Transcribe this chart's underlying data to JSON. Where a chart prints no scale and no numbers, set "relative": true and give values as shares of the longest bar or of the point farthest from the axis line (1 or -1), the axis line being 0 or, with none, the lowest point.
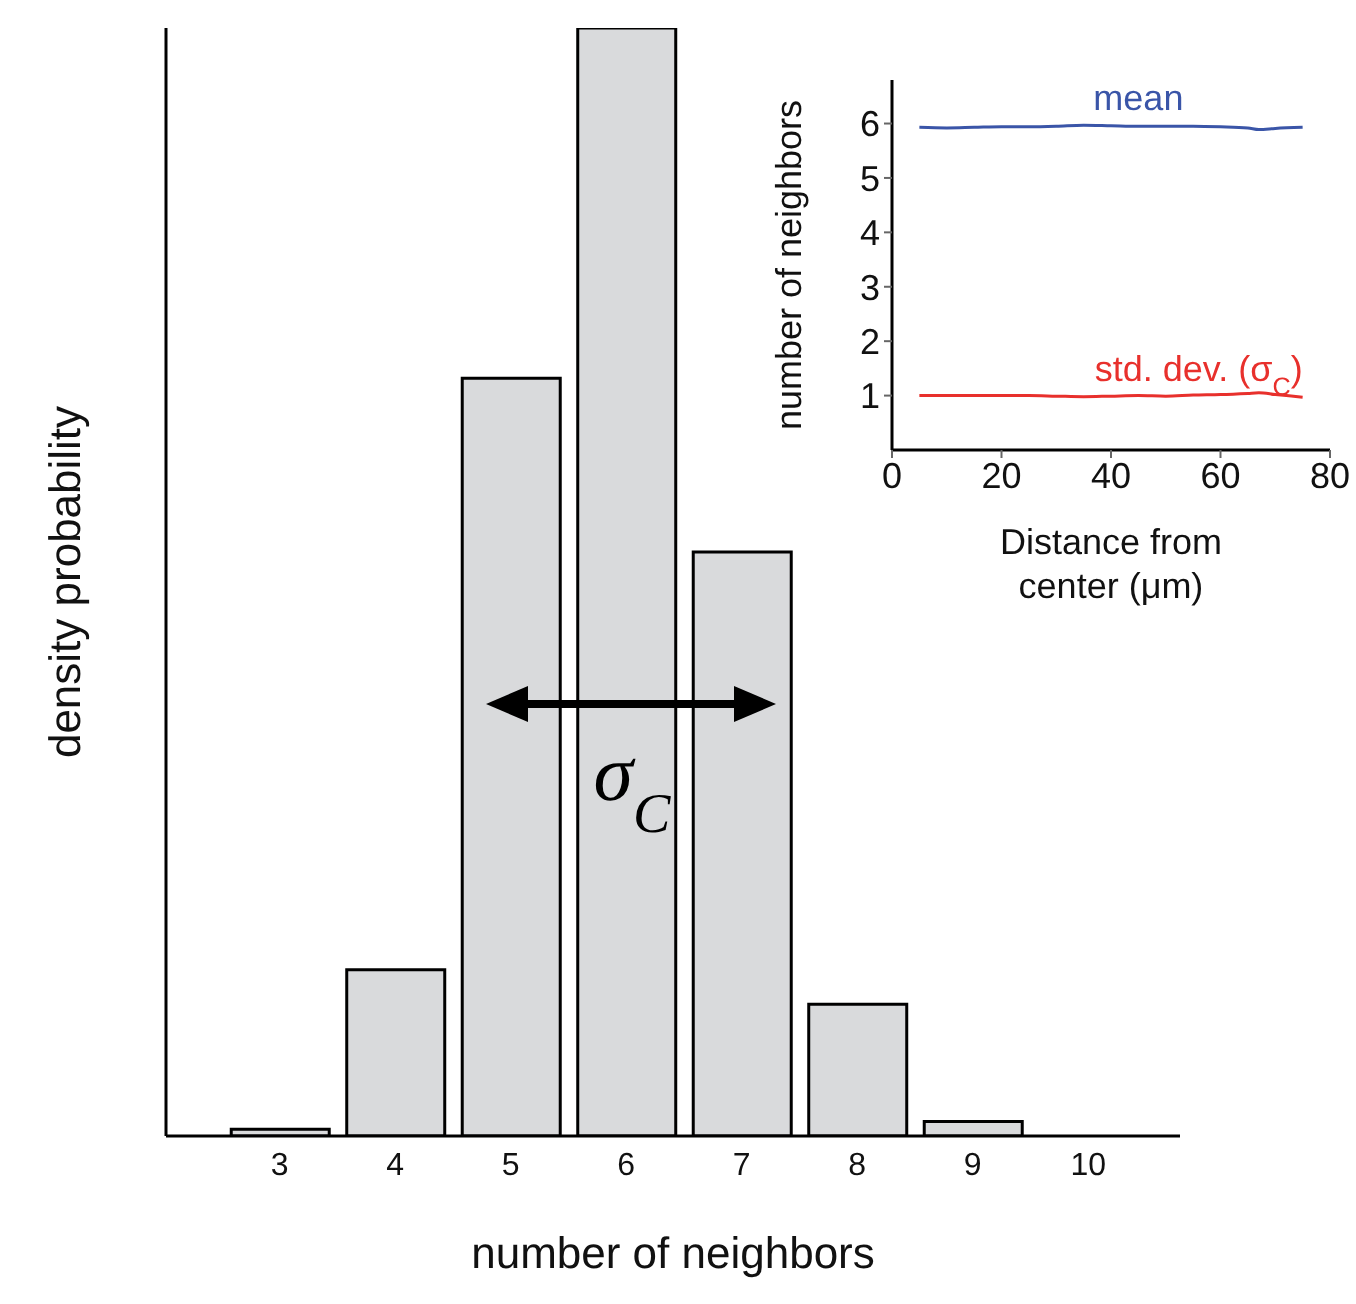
{
  "chart_data": [
    {
      "type": "bar",
      "xlabel": "number of neighbors",
      "ylabel": "density probability",
      "categories": [
        "3",
        "4",
        "5",
        "6",
        "7",
        "8",
        "9",
        "10"
      ],
      "values": [
        0.006,
        0.15,
        0.684,
        1,
        0.527,
        0.119,
        0.013,
        0
      ],
      "color": "#d9dadc",
      "relative": true,
      "annotations": [
        "σ$_{C}$"
      ]
    },
    {
      "type": "line",
      "xlabel": "Distance from center (μm)",
      "ylabel": "number of neighbors",
      "x": [
        5,
        10,
        15,
        20,
        25,
        30,
        35,
        40,
        45,
        50,
        55,
        60,
        65,
        67,
        70,
        75
      ],
      "xlim": [
        0,
        80
      ],
      "xticks": [
        0,
        20,
        40,
        60,
        80
      ],
      "ylim": [
        0,
        6.8
      ],
      "yticks": [
        1,
        2,
        3,
        4,
        5,
        6
      ],
      "series": [
        {
          "name": "mean",
          "color": "#3a55a8",
          "values": [
            5.93,
            5.92,
            5.93,
            5.94,
            5.94,
            5.95,
            5.97,
            5.96,
            5.95,
            5.95,
            5.95,
            5.94,
            5.92,
            5.89,
            5.91,
            5.93
          ]
        },
        {
          "name": "std. dev. (σ$_{C}$)",
          "color": "#e8302c",
          "values": [
            1,
            1,
            1,
            1,
            1,
            0.99,
            0.98,
            0.99,
            1,
            0.99,
            1.01,
            1.02,
            1.04,
            1.05,
            1.02,
            0.97
          ]
        }
      ]
    }
  ]
}
